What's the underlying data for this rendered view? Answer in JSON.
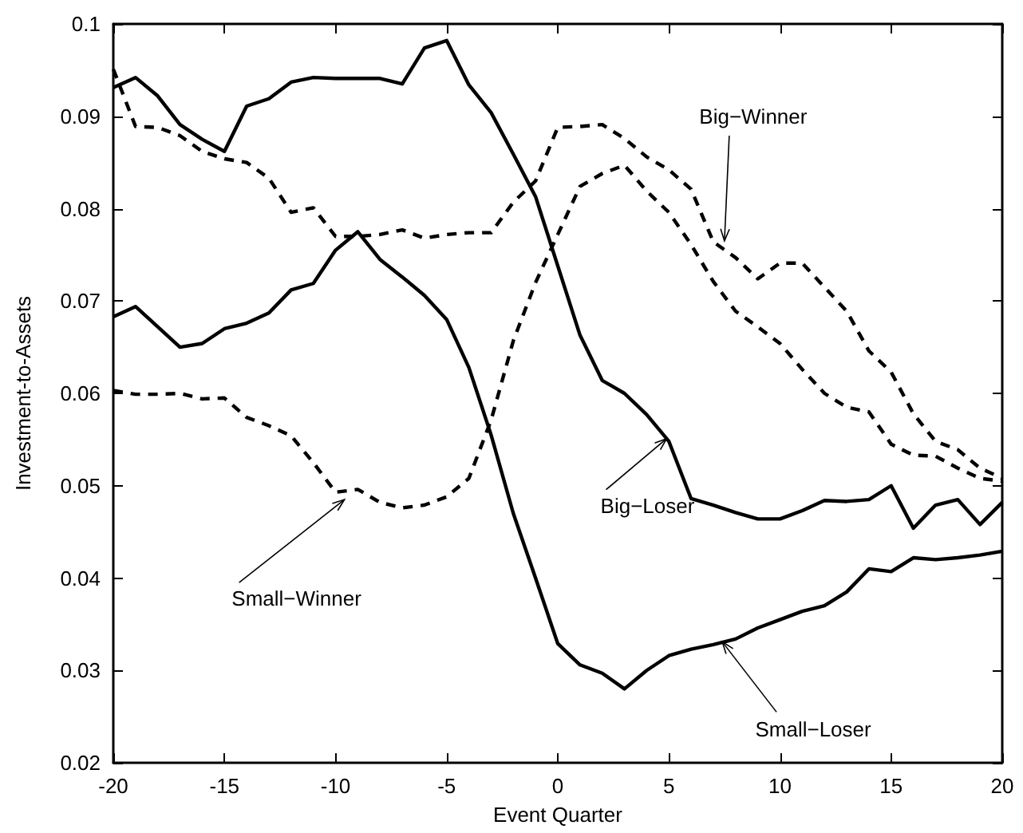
{
  "chart_data": {
    "type": "line",
    "xlabel": "Event Quarter",
    "ylabel": "Investment-to-Assets",
    "x": [
      -20,
      -19,
      -18,
      -17,
      -16,
      -15,
      -14,
      -13,
      -12,
      -11,
      -10,
      -9,
      -8,
      -7,
      -6,
      -5,
      -4,
      -3,
      -2,
      -1,
      0,
      1,
      2,
      3,
      4,
      5,
      6,
      7,
      8,
      9,
      10,
      11,
      12,
      13,
      14,
      15,
      16,
      17,
      18,
      19,
      20
    ],
    "series": [
      {
        "color": "#000000",
        "line_style": "dashed",
        "values": [
          0.0951,
          0.0889,
          0.0888,
          0.0879,
          0.0862,
          0.0854,
          0.085,
          0.0833,
          0.0796,
          0.0801,
          0.077,
          0.077,
          0.0772,
          0.0777,
          0.0768,
          0.0772,
          0.0774,
          0.0774,
          0.0807,
          0.083,
          0.0888,
          0.0889,
          0.0891,
          0.0876,
          0.0856,
          0.0842,
          0.0821,
          0.0764,
          0.0747,
          0.0724,
          0.0741,
          0.0741,
          0.0715,
          0.0689,
          0.0646,
          0.0623,
          0.0578,
          0.0548,
          0.0539,
          0.0519,
          0.0508
        ]
      },
      {
        "color": "#000000",
        "line_style": "dashed",
        "values": [
          0.0603,
          0.0599,
          0.0599,
          0.06,
          0.0594,
          0.0595,
          0.0574,
          0.0565,
          0.0554,
          0.0525,
          0.0493,
          0.0496,
          0.0482,
          0.0476,
          0.0479,
          0.0488,
          0.0508,
          0.0571,
          0.0657,
          0.072,
          0.0772,
          0.0824,
          0.0838,
          0.0847,
          0.0819,
          0.0796,
          0.0761,
          0.0721,
          0.0689,
          0.0672,
          0.0654,
          0.0626,
          0.06,
          0.0585,
          0.058,
          0.0545,
          0.0533,
          0.0532,
          0.0519,
          0.0508,
          0.0505
        ]
      },
      {
        "color": "#000000",
        "line_style": "solid",
        "values": [
          0.0931,
          0.0942,
          0.0922,
          0.0891,
          0.0875,
          0.0862,
          0.0911,
          0.0919,
          0.0937,
          0.0942,
          0.0941,
          0.0941,
          0.0941,
          0.0935,
          0.0974,
          0.0982,
          0.0934,
          0.0904,
          0.0859,
          0.0813,
          0.0738,
          0.0663,
          0.0614,
          0.06,
          0.0577,
          0.0548,
          0.0486,
          0.0479,
          0.0471,
          0.0464,
          0.0464,
          0.0473,
          0.0484,
          0.0483,
          0.0485,
          0.05,
          0.0454,
          0.0479,
          0.0485,
          0.0458,
          0.0482
        ]
      },
      {
        "color": "#000000",
        "line_style": "solid",
        "values": [
          0.0683,
          0.0694,
          0.0672,
          0.065,
          0.0654,
          0.067,
          0.0676,
          0.0687,
          0.0712,
          0.0719,
          0.0755,
          0.0775,
          0.0745,
          0.0726,
          0.0706,
          0.068,
          0.0628,
          0.0555,
          0.047,
          0.04,
          0.0329,
          0.0306,
          0.0297,
          0.028,
          0.03,
          0.0316,
          0.0323,
          0.0328,
          0.0334,
          0.0346,
          0.0355,
          0.0364,
          0.037,
          0.0385,
          0.041,
          0.0407,
          0.0422,
          0.042,
          0.0422,
          0.0425,
          0.0429
        ]
      }
    ],
    "xlim": [
      -20,
      20
    ],
    "xticks": [
      -20,
      -15,
      -10,
      -5,
      0,
      5,
      10,
      15,
      20
    ],
    "ylim": [
      0.02,
      0.1
    ],
    "yticks": [
      0.02,
      0.03,
      0.04,
      0.05,
      0.06,
      0.07,
      0.08,
      0.09,
      0.1
    ],
    "grid": false,
    "marker": "none",
    "annotations": [
      {
        "text": "Big−Winner",
        "x": 7.5,
        "y": 0.0765
      },
      {
        "text": "Small−Winner",
        "x": -9.6,
        "y": 0.0485
      },
      {
        "text": "Big−Loser",
        "x": 4.9,
        "y": 0.0551
      },
      {
        "text": "Small−Loser",
        "x": 7.4,
        "y": 0.0331
      }
    ]
  }
}
